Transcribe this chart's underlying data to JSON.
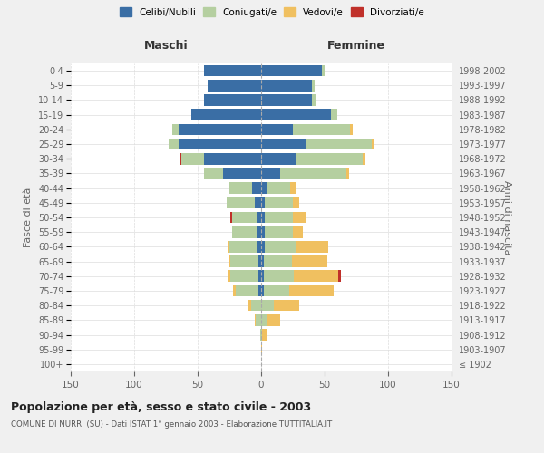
{
  "age_groups": [
    "100+",
    "95-99",
    "90-94",
    "85-89",
    "80-84",
    "75-79",
    "70-74",
    "65-69",
    "60-64",
    "55-59",
    "50-54",
    "45-49",
    "40-44",
    "35-39",
    "30-34",
    "25-29",
    "20-24",
    "15-19",
    "10-14",
    "5-9",
    "0-4"
  ],
  "birth_years": [
    "≤ 1902",
    "1903-1907",
    "1908-1912",
    "1913-1917",
    "1918-1922",
    "1923-1927",
    "1928-1932",
    "1933-1937",
    "1938-1942",
    "1943-1947",
    "1948-1952",
    "1953-1957",
    "1958-1962",
    "1963-1967",
    "1968-1972",
    "1973-1977",
    "1978-1982",
    "1983-1987",
    "1988-1992",
    "1993-1997",
    "1998-2002"
  ],
  "maschi": {
    "celibi": [
      0,
      0,
      0,
      0,
      0,
      2,
      2,
      2,
      3,
      3,
      3,
      5,
      7,
      30,
      45,
      65,
      65,
      55,
      45,
      42,
      45
    ],
    "coniugati": [
      0,
      0,
      1,
      4,
      8,
      18,
      22,
      22,
      22,
      20,
      20,
      22,
      18,
      15,
      18,
      8,
      5,
      0,
      0,
      0,
      0
    ],
    "vedovi": [
      0,
      0,
      0,
      1,
      2,
      2,
      2,
      1,
      1,
      0,
      0,
      0,
      0,
      0,
      0,
      0,
      0,
      0,
      0,
      0,
      0
    ],
    "divorziati": [
      0,
      0,
      0,
      0,
      0,
      0,
      0,
      0,
      0,
      0,
      1,
      0,
      0,
      0,
      1,
      0,
      0,
      0,
      0,
      0,
      0
    ]
  },
  "femmine": {
    "nubili": [
      0,
      0,
      0,
      0,
      0,
      2,
      2,
      2,
      3,
      3,
      3,
      3,
      5,
      15,
      28,
      35,
      25,
      55,
      40,
      40,
      48
    ],
    "coniugate": [
      0,
      0,
      1,
      5,
      10,
      20,
      24,
      22,
      25,
      22,
      22,
      22,
      18,
      52,
      52,
      52,
      45,
      5,
      3,
      2,
      2
    ],
    "vedove": [
      0,
      1,
      3,
      10,
      20,
      35,
      35,
      28,
      25,
      8,
      10,
      5,
      5,
      2,
      2,
      2,
      2,
      0,
      0,
      0,
      0
    ],
    "divorziate": [
      0,
      0,
      0,
      0,
      0,
      0,
      2,
      0,
      0,
      0,
      0,
      0,
      0,
      0,
      0,
      0,
      0,
      0,
      0,
      0,
      0
    ]
  },
  "colors": {
    "celibi_nubili": "#3a6ea5",
    "coniugati": "#b5cfa0",
    "vedovi": "#f0c060",
    "divorziati": "#c0302a"
  },
  "xlim": 150,
  "title": "Popolazione per età, sesso e stato civile - 2003",
  "subtitle": "COMUNE DI NURRI (SU) - Dati ISTAT 1° gennaio 2003 - Elaborazione TUTTITALIA.IT",
  "ylabel_left": "Fasce di età",
  "ylabel_right": "Anni di nascita",
  "xlabel_maschi": "Maschi",
  "xlabel_femmine": "Femmine",
  "legend_labels": [
    "Celibi/Nubili",
    "Coniugati/e",
    "Vedovi/e",
    "Divorziati/e"
  ],
  "bg_color": "#f0f0f0",
  "plot_bg_color": "#ffffff"
}
